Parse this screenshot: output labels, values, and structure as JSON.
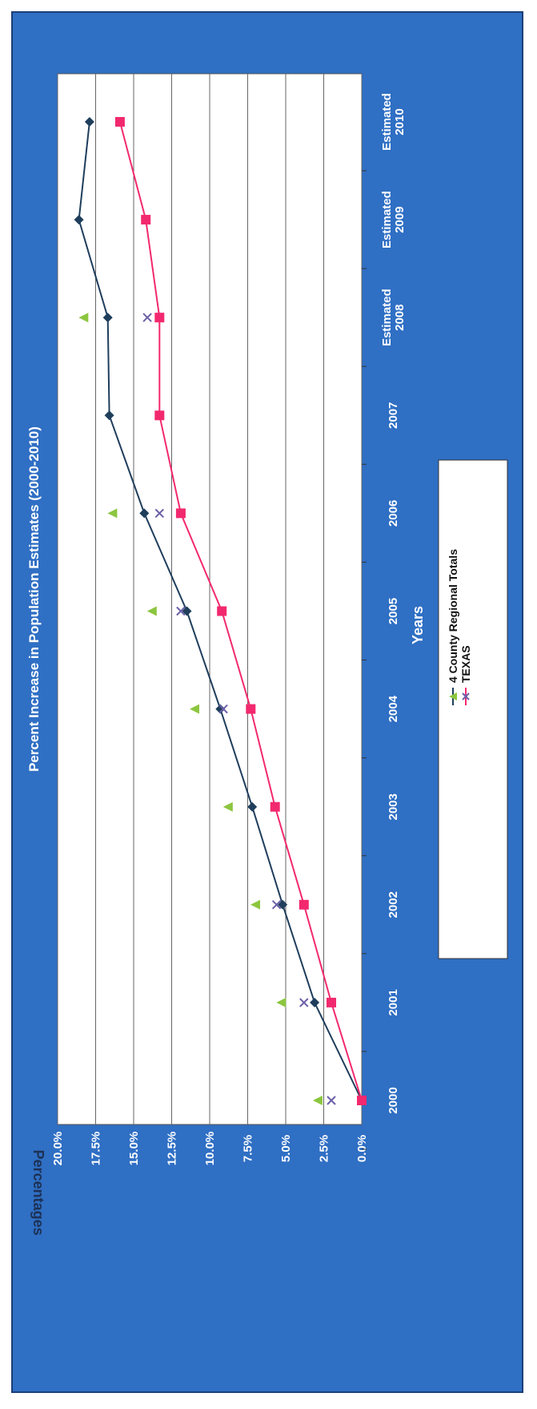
{
  "chart_data": {
    "type": "line",
    "title": "Percent Increase in Population Estimates (2000-2010)",
    "xlabel": "Years",
    "ylabel": "Percentages",
    "categories": [
      [
        "2000"
      ],
      [
        "2001"
      ],
      [
        "2002"
      ],
      [
        "2003"
      ],
      [
        "2004"
      ],
      [
        "2005"
      ],
      [
        "2006"
      ],
      [
        "2007"
      ],
      [
        "Estimated",
        "2008"
      ],
      [
        "Estimated",
        "2009"
      ],
      [
        "Estimated",
        "2010"
      ]
    ],
    "y_ticks": [
      "0.0%",
      "2.5%",
      "5.0%",
      "7.5%",
      "10.0%",
      "12.5%",
      "15.0%",
      "17.5%",
      "20.0%"
    ],
    "ylim": [
      0,
      20
    ],
    "grid": true,
    "legend_position": "bottom",
    "orientation": "rotated 90 degrees counter-clockwise",
    "series": [
      {
        "name": "4 County Regional Totals",
        "color": "#1f3e5c",
        "marker": "diamond",
        "values": [
          0.0,
          3.1,
          5.2,
          7.2,
          9.3,
          11.5,
          14.3,
          16.6,
          16.7,
          18.6,
          17.9
        ]
      },
      {
        "name": "",
        "color": "#8cc63f",
        "marker": "triangle",
        "values": [
          2.9,
          5.3,
          7.0,
          8.8,
          11.0,
          13.8,
          16.4,
          null,
          18.3,
          null,
          null
        ]
      },
      {
        "name": "TEXAS",
        "color": "#f2296e",
        "marker": "square",
        "values": [
          0.0,
          2.0,
          3.8,
          5.7,
          7.3,
          9.2,
          11.9,
          13.3,
          13.3,
          14.2,
          15.9
        ]
      },
      {
        "name": "",
        "color": "#6b5fa8",
        "marker": "x",
        "values": [
          2.0,
          3.8,
          5.6,
          null,
          9.1,
          11.9,
          13.3,
          null,
          14.1,
          null,
          null
        ]
      }
    ]
  },
  "legend_entries": [
    "4 County Regional Totals",
    "TEXAS"
  ]
}
